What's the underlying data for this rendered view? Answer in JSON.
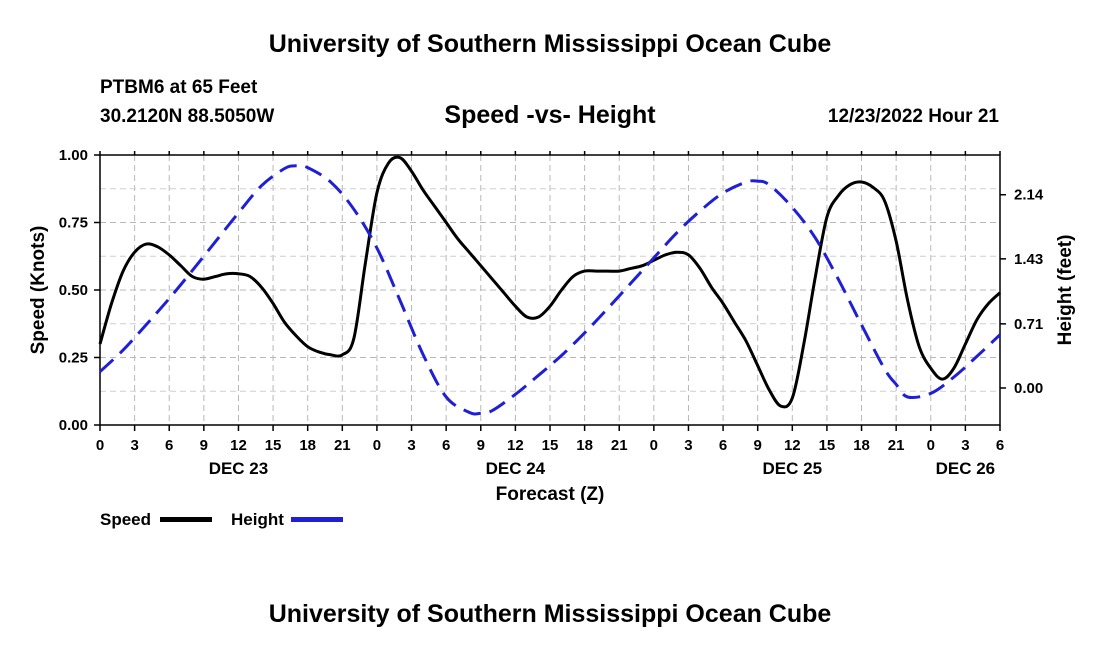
{
  "page": {
    "title": "University of Southern Mississippi Ocean Cube",
    "footer_title": "University of Southern Mississippi Ocean Cube",
    "station": "PTBM6 at 65 Feet",
    "coords": "30.2120N  88.5050W",
    "subtitle": "Speed -vs- Height",
    "timestamp": "12/23/2022 Hour 21"
  },
  "chart_data": {
    "type": "line",
    "title": "Speed -vs- Height",
    "xlabel": "Forecast (Z)",
    "ylabel": "Speed (Knots)",
    "y2label": "Height (feet)",
    "x_range_hours": [
      0,
      78
    ],
    "ylim": [
      0.0,
      1.0
    ],
    "y2lim": [
      -0.41,
      2.58
    ],
    "y_ticks": [
      "0.00",
      "0.25",
      "0.50",
      "0.75",
      "1.00"
    ],
    "y2_ticks": [
      "0.00",
      "0.71",
      "1.43",
      "2.14"
    ],
    "y2_tick_values": [
      0.0,
      0.71,
      1.43,
      2.14
    ],
    "x_tick_labels": [
      "0",
      "3",
      "6",
      "9",
      "12",
      "15",
      "18",
      "21",
      "0",
      "3",
      "6",
      "9",
      "12",
      "15",
      "18",
      "21",
      "0",
      "3",
      "6",
      "9",
      "12",
      "15",
      "18",
      "21",
      "0",
      "3",
      "6"
    ],
    "date_labels": [
      {
        "label": "DEC 23",
        "hour": 12
      },
      {
        "label": "DEC 24",
        "hour": 36
      },
      {
        "label": "DEC 25",
        "hour": 60
      },
      {
        "label": "DEC 26",
        "hour": 75
      }
    ],
    "grid": true,
    "legend": "bottom-left",
    "series": [
      {
        "name": "Speed",
        "axis": "left",
        "color": "#000000",
        "dash": "solid",
        "x": [
          0,
          1,
          2,
          3,
          4,
          5,
          6,
          7,
          8,
          9,
          10,
          11,
          12,
          13,
          14,
          15,
          16,
          17,
          18,
          19,
          20,
          21,
          22,
          23,
          24,
          25,
          26,
          27,
          28,
          29,
          30,
          31,
          32,
          33,
          34,
          35,
          36,
          37,
          38,
          39,
          40,
          41,
          42,
          43,
          44,
          45,
          46,
          47,
          48,
          49,
          50,
          51,
          52,
          53,
          54,
          55,
          56,
          57,
          58,
          59,
          60,
          61,
          62,
          63,
          64,
          65,
          66,
          67,
          68,
          69,
          70,
          71,
          72,
          73,
          74,
          75,
          76,
          77,
          78
        ],
        "values": [
          0.3,
          0.45,
          0.57,
          0.64,
          0.67,
          0.66,
          0.63,
          0.59,
          0.55,
          0.54,
          0.55,
          0.56,
          0.56,
          0.55,
          0.51,
          0.45,
          0.38,
          0.33,
          0.29,
          0.27,
          0.26,
          0.26,
          0.32,
          0.6,
          0.86,
          0.97,
          0.99,
          0.94,
          0.87,
          0.81,
          0.75,
          0.69,
          0.64,
          0.59,
          0.54,
          0.49,
          0.44,
          0.4,
          0.4,
          0.44,
          0.5,
          0.55,
          0.57,
          0.57,
          0.57,
          0.57,
          0.58,
          0.59,
          0.61,
          0.63,
          0.64,
          0.63,
          0.58,
          0.51,
          0.45,
          0.38,
          0.31,
          0.22,
          0.13,
          0.07,
          0.1,
          0.3,
          0.55,
          0.77,
          0.85,
          0.89,
          0.9,
          0.88,
          0.83,
          0.68,
          0.46,
          0.29,
          0.21,
          0.17,
          0.21,
          0.3,
          0.39,
          0.45,
          0.49
        ]
      },
      {
        "name": "Height",
        "axis": "right",
        "color": "#1f1fd6",
        "dash": "dashed",
        "x": [
          0,
          2,
          4,
          6,
          8,
          10,
          12,
          14,
          16,
          17,
          18,
          20,
          22,
          24,
          26,
          28,
          30,
          32,
          33,
          34,
          36,
          38,
          40,
          42,
          44,
          46,
          48,
          50,
          52,
          54,
          56,
          57,
          58,
          60,
          62,
          64,
          66,
          68,
          69,
          70,
          72,
          74,
          76,
          78
        ],
        "values": [
          0.18,
          0.42,
          0.7,
          0.99,
          1.3,
          1.62,
          1.94,
          2.24,
          2.43,
          2.46,
          2.44,
          2.28,
          1.98,
          1.55,
          0.97,
          0.37,
          -0.1,
          -0.27,
          -0.28,
          -0.25,
          -0.07,
          0.14,
          0.36,
          0.61,
          0.88,
          1.16,
          1.44,
          1.72,
          1.96,
          2.16,
          2.28,
          2.29,
          2.25,
          2.0,
          1.66,
          1.2,
          0.7,
          0.21,
          0.04,
          -0.1,
          -0.06,
          0.12,
          0.35,
          0.59
        ]
      }
    ]
  }
}
